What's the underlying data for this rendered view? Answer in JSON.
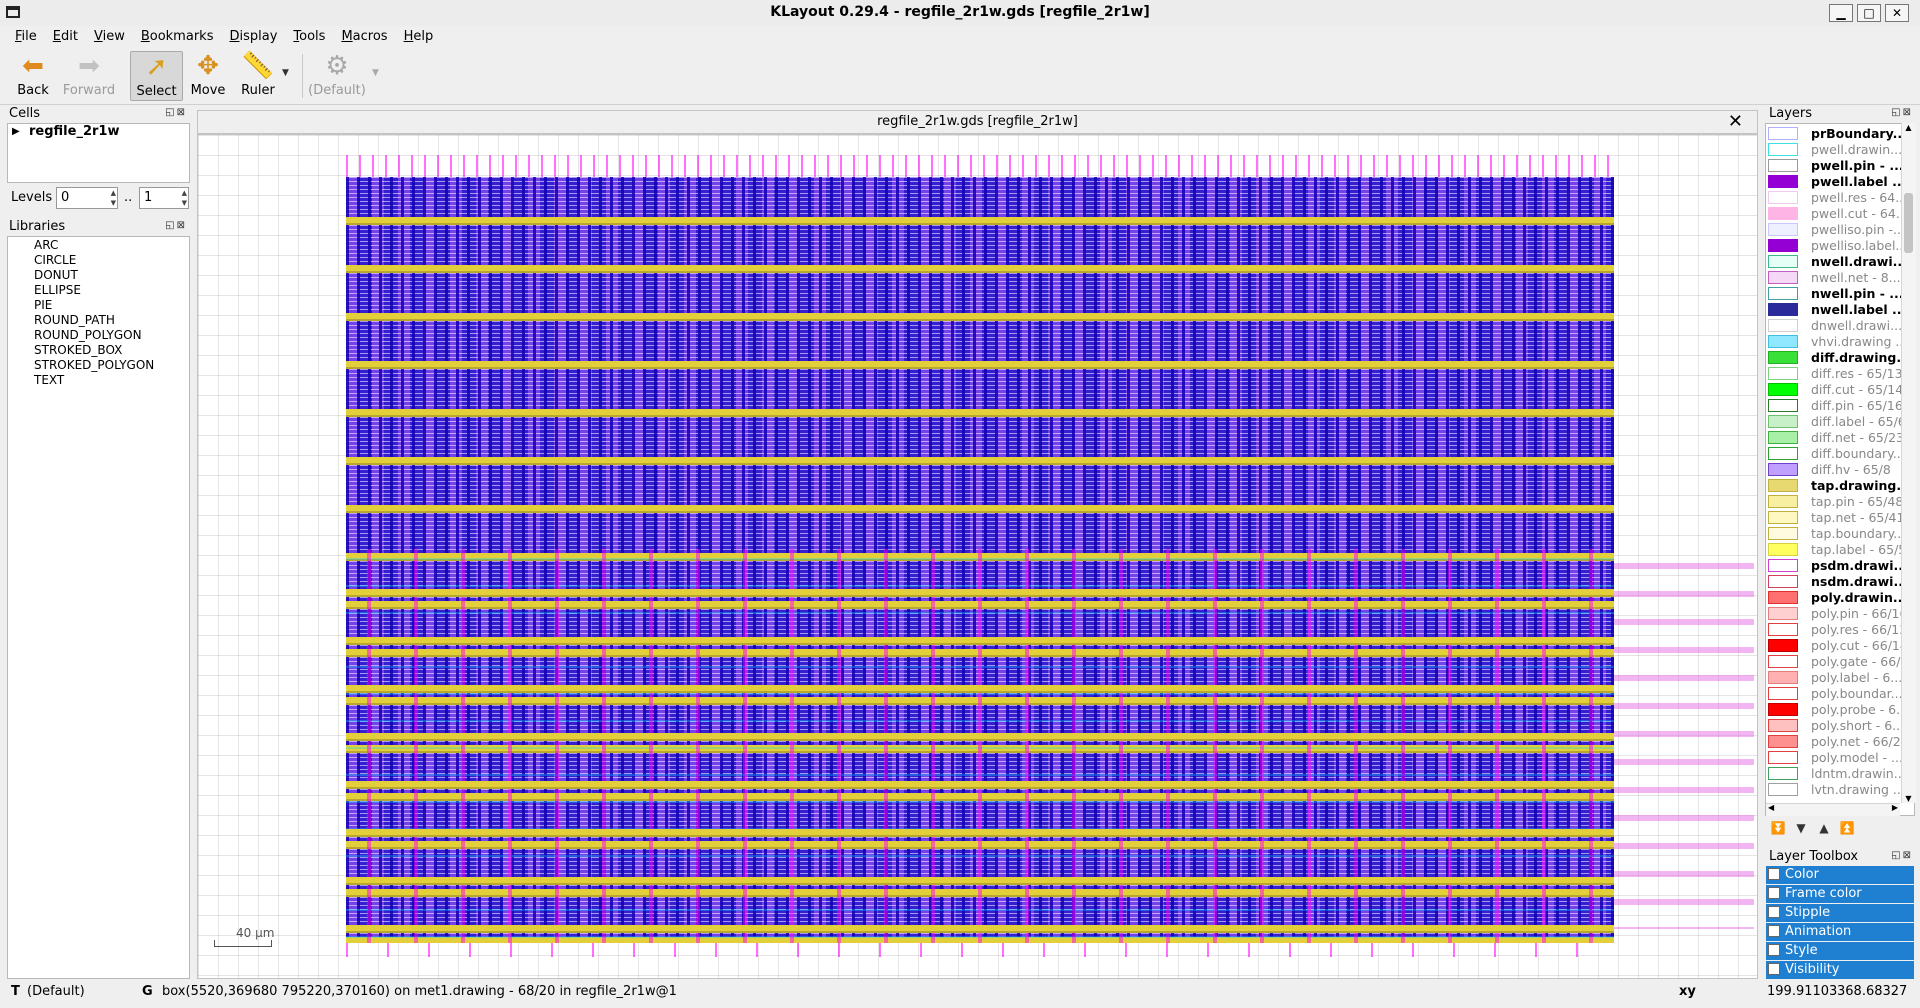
{
  "window": {
    "title": "KLayout 0.29.4 - regfile_2r1w.gds [regfile_2r1w]"
  },
  "menu": [
    "File",
    "Edit",
    "View",
    "Bookmarks",
    "Display",
    "Tools",
    "Macros",
    "Help"
  ],
  "toolbar": {
    "back": "Back",
    "forward": "Forward",
    "select": "Select",
    "move": "Move",
    "ruler": "Ruler",
    "mode": "(Default)"
  },
  "cells": {
    "header": "Cells",
    "root": "regfile_2r1w",
    "levels_label": "Levels",
    "levels_from": "0",
    "levels_sep": "..",
    "levels_to": "1"
  },
  "libraries": {
    "header": "Libraries",
    "items": [
      "ARC",
      "CIRCLE",
      "DONUT",
      "ELLIPSE",
      "PIE",
      "ROUND_PATH",
      "ROUND_POLYGON",
      "STROKED_BOX",
      "STROKED_POLYGON",
      "TEXT"
    ]
  },
  "view": {
    "tab_title": "regfile_2r1w.gds [regfile_2r1w]",
    "scale_label": "40 µm",
    "colors": {
      "substrate": "#4a2fd9",
      "rail": "#e3cf3a",
      "metal2": "#ff00ff",
      "metal3": "#00dcff"
    }
  },
  "layers": {
    "header": "Layers",
    "items": [
      {
        "name": "prBoundary....",
        "style": "strong",
        "fill": "#ffffff",
        "border": "#b0b0ff"
      },
      {
        "name": "pwell.drawin...",
        "style": "weak",
        "fill": "#ffffff",
        "border": "#40e0e0"
      },
      {
        "name": "pwell.pin - ...",
        "style": "strong",
        "fill": "#ffffff",
        "border": "#9a9a9a"
      },
      {
        "name": "pwell.label ...",
        "style": "strong",
        "fill": "#9400d3",
        "border": "#9400d3"
      },
      {
        "name": "pwell.res - 64...",
        "style": "weak",
        "fill": "#ffffff",
        "border": "#f0c8f0"
      },
      {
        "name": "pwell.cut - 64...",
        "style": "weak",
        "fill": "#ffb4e6",
        "border": "#ffb4e6"
      },
      {
        "name": "pwelliso.pin -...",
        "style": "weak",
        "fill": "#eef0ff",
        "border": "#c8c8ff"
      },
      {
        "name": "pwelliso.label...",
        "style": "weak",
        "fill": "#9400d3",
        "border": "#9400d3"
      },
      {
        "name": "nwell.drawi...",
        "style": "strong",
        "fill": "#e6fff6",
        "border": "#3fb68b"
      },
      {
        "name": "nwell.net - 8...",
        "style": "weak",
        "fill": "#f5d8f5",
        "border": "#c060c0"
      },
      {
        "name": "nwell.pin - ...",
        "style": "strong",
        "fill": "#ffffff",
        "border": "#40a0a0"
      },
      {
        "name": "nwell.label ...",
        "style": "strong",
        "fill": "#2a2a9a",
        "border": "#2a2a9a"
      },
      {
        "name": "dnwell.drawi...",
        "style": "weak",
        "fill": "#ffffff",
        "border": "#d0d0d0"
      },
      {
        "name": "vhvi.drawing ...",
        "style": "weak",
        "fill": "#8fe8ff",
        "border": "#40c0e0"
      },
      {
        "name": "diff.drawing...",
        "style": "strong",
        "fill": "#38e038",
        "border": "#20b020"
      },
      {
        "name": "diff.res - 65/13",
        "style": "weak",
        "fill": "#ffffff",
        "border": "#80d080"
      },
      {
        "name": "diff.cut - 65/14",
        "style": "weak",
        "fill": "#00ff00",
        "border": "#00c000"
      },
      {
        "name": "diff.pin - 65/16",
        "style": "weak",
        "fill": "#ffffff",
        "border": "#2a7a2a"
      },
      {
        "name": "diff.label - 65/6",
        "style": "weak",
        "fill": "#c8f0c8",
        "border": "#70c070"
      },
      {
        "name": "diff.net - 65/23",
        "style": "weak",
        "fill": "#a8f0a8",
        "border": "#40b040"
      },
      {
        "name": "diff.boundary...",
        "style": "weak",
        "fill": "#ffffff",
        "border": "#30a030"
      },
      {
        "name": "diff.hv - 65/8",
        "style": "weak",
        "fill": "#c0a0ff",
        "border": "#7040d0"
      },
      {
        "name": "tap.drawing...",
        "style": "strong",
        "fill": "#e8d870",
        "border": "#c0b040"
      },
      {
        "name": "tap.pin - 65/48",
        "style": "weak",
        "fill": "#f8f0a0",
        "border": "#c0b040"
      },
      {
        "name": "tap.net - 65/41",
        "style": "weak",
        "fill": "#fff8c0",
        "border": "#c0b040"
      },
      {
        "name": "tap.boundary...",
        "style": "weak",
        "fill": "#fffbe0",
        "border": "#c0b040"
      },
      {
        "name": "tap.label - 65/5",
        "style": "weak",
        "fill": "#ffff60",
        "border": "#d8d040"
      },
      {
        "name": "psdm.drawi...",
        "style": "strong",
        "fill": "#ffffff",
        "border": "#d040d0"
      },
      {
        "name": "nsdm.drawi...",
        "style": "strong",
        "fill": "#ffffff",
        "border": "#d04060"
      },
      {
        "name": "poly.drawin...",
        "style": "strong",
        "fill": "#ff7070",
        "border": "#e03030"
      },
      {
        "name": "poly.pin - 66/16",
        "style": "weak",
        "fill": "#ffd0d0",
        "border": "#e08080"
      },
      {
        "name": "poly.res - 66/13",
        "style": "weak",
        "fill": "#ffffff",
        "border": "#e04040"
      },
      {
        "name": "poly.cut - 66/14",
        "style": "weak",
        "fill": "#ff0000",
        "border": "#c00000"
      },
      {
        "name": "poly.gate - 66/9",
        "style": "weak",
        "fill": "#ffffff",
        "border": "#e04040"
      },
      {
        "name": "poly.label - 6...",
        "style": "weak",
        "fill": "#ffb0b0",
        "border": "#e08080"
      },
      {
        "name": "poly.boundar...",
        "style": "weak",
        "fill": "#ffffff",
        "border": "#e04040"
      },
      {
        "name": "poly.probe - 6...",
        "style": "weak",
        "fill": "#ff0000",
        "border": "#c00000"
      },
      {
        "name": "poly.short - 6...",
        "style": "weak",
        "fill": "#ffc0c0",
        "border": "#e04040"
      },
      {
        "name": "poly.net - 66/23",
        "style": "weak",
        "fill": "#ff9090",
        "border": "#e04040"
      },
      {
        "name": "poly.model - ...",
        "style": "weak",
        "fill": "#ffffff",
        "border": "#e04040"
      },
      {
        "name": "ldntm.drawin...",
        "style": "weak",
        "fill": "#ffffff",
        "border": "#40a060"
      },
      {
        "name": "lvtn.drawing ...",
        "style": "weak",
        "fill": "#ffffff",
        "border": "#a0a0a0"
      }
    ]
  },
  "layer_toolbox": {
    "header": "Layer Toolbox",
    "items": [
      "Color",
      "Frame color",
      "Stipple",
      "Animation",
      "Style",
      "Visibility"
    ]
  },
  "status": {
    "mode_key": "T",
    "mode": "(Default)",
    "g_key": "G",
    "message": "box(5520,369680 795220,370160) on met1.drawing - 68/20 in regfile_2r1w@1",
    "coord_label": "xy",
    "x": "199.91103",
    "y": "368.68327"
  }
}
